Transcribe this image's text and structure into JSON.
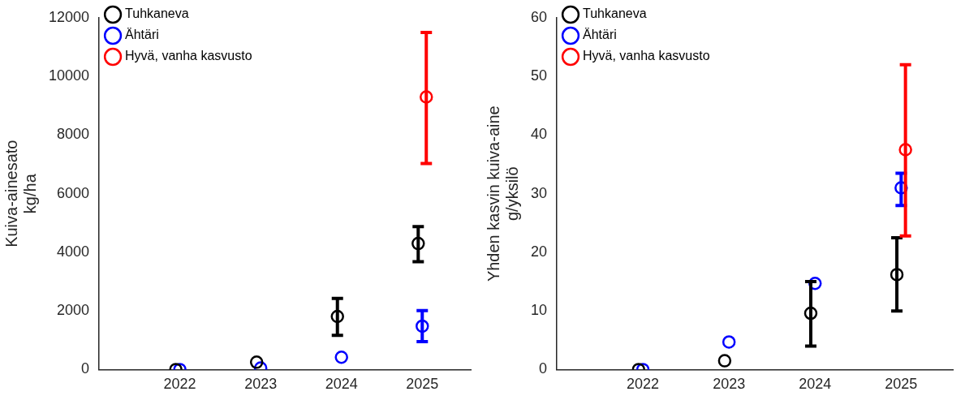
{
  "chart_data": [
    {
      "type": "scatter",
      "ylabel": "Kuiva-ainesato\nkg/ha",
      "categories": [
        "2022",
        "2023",
        "2024",
        "2025"
      ],
      "ylim": [
        0,
        12000
      ],
      "yticks": [
        0,
        2000,
        4000,
        6000,
        8000,
        10000,
        12000
      ],
      "legend": "top left",
      "marker": "circle",
      "grid": false,
      "series": [
        {
          "name": "Tuhkaneva",
          "color": "#000000",
          "values": [
            0,
            250,
            1810,
            4300
          ],
          "errors": [
            null,
            null,
            [
              1170,
              2430
            ],
            [
              3680,
              4880
            ]
          ]
        },
        {
          "name": "Ähtäri",
          "color": "#0000ff",
          "values": [
            0,
            50,
            420,
            1480
          ],
          "errors": [
            null,
            null,
            null,
            [
              950,
              2010
            ]
          ]
        },
        {
          "name": "Hyvä, vanha kasvusto",
          "color": "#ff0000",
          "values": [
            null,
            null,
            null,
            9300
          ],
          "errors": [
            null,
            null,
            null,
            [
              7030,
              11500
            ]
          ]
        }
      ]
    },
    {
      "type": "scatter",
      "ylabel": "Yhden kasvin kuiva-aine\ng/yksilö",
      "categories": [
        "2022",
        "2023",
        "2024",
        "2025"
      ],
      "ylim": [
        0,
        60
      ],
      "yticks": [
        0,
        10,
        20,
        30,
        40,
        50,
        60
      ],
      "legend": "top left",
      "marker": "circle",
      "grid": false,
      "series": [
        {
          "name": "Tuhkaneva",
          "color": "#000000",
          "values": [
            0,
            1.5,
            9.6,
            16.2
          ],
          "errors": [
            null,
            null,
            [
              4,
              15
            ],
            [
              10,
              22.5
            ]
          ]
        },
        {
          "name": "Ähtäri",
          "color": "#0000ff",
          "values": [
            0,
            4.7,
            14.7,
            31
          ],
          "errors": [
            null,
            null,
            null,
            [
              28,
              33.5
            ]
          ]
        },
        {
          "name": "Hyvä, vanha kasvusto",
          "color": "#ff0000",
          "values": [
            null,
            null,
            null,
            37.5
          ],
          "errors": [
            null,
            null,
            null,
            [
              22.8,
              52
            ]
          ]
        }
      ]
    }
  ]
}
